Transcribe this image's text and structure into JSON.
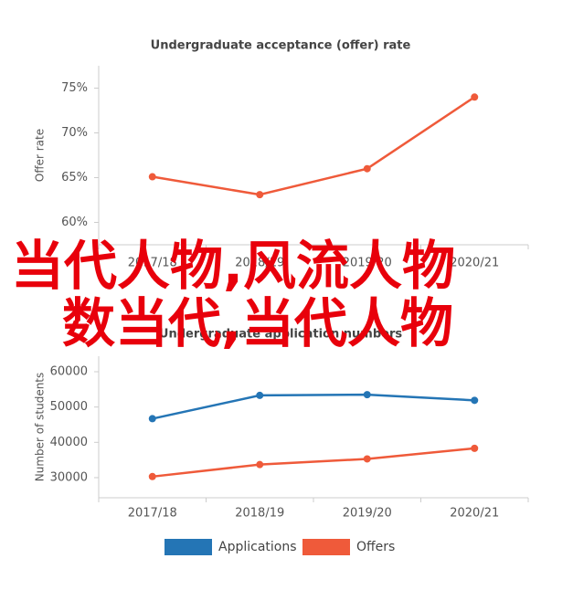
{
  "chart_data": [
    {
      "type": "line",
      "title": "Undergraduate acceptance (offer) rate",
      "y_label": "Offer rate",
      "categories": [
        "2017/18",
        "2018/19",
        "2019/20",
        "2020/21"
      ],
      "series": [
        {
          "name": "Offer rate",
          "color": "#ef5a3a",
          "values": [
            65.1,
            63.1,
            66.0,
            74.0
          ]
        }
      ],
      "ylim": [
        57.5,
        77.5
      ],
      "yticks": [
        {
          "value": 60,
          "label": "60%"
        },
        {
          "value": 65,
          "label": "65%"
        },
        {
          "value": 70,
          "label": "70%"
        },
        {
          "value": 75,
          "label": "75%"
        }
      ]
    },
    {
      "type": "line",
      "title": "Undergraduate application numbers",
      "y_label": "Number of students",
      "categories": [
        "2017/18",
        "2018/19",
        "2019/20",
        "2020/21"
      ],
      "series": [
        {
          "name": "Applications",
          "color": "#2475b5",
          "values": [
            46700,
            53300,
            53500,
            51900
          ]
        },
        {
          "name": "Offers",
          "color": "#ef5a3a",
          "values": [
            30300,
            33700,
            35300,
            38300
          ]
        }
      ],
      "ylim": [
        24300,
        64400
      ],
      "yticks": [
        30000,
        40000,
        50000,
        60000
      ],
      "legend": "bottom"
    }
  ],
  "overlay": {
    "lines": [
      "当代人物,风流人物",
      "数当代,当代人物"
    ]
  }
}
